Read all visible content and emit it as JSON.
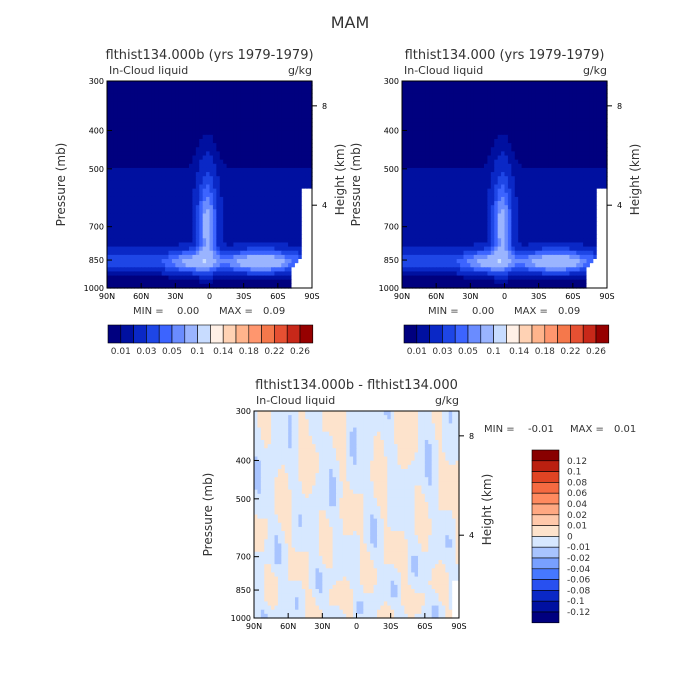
{
  "figure_title": "MAM",
  "colors": {
    "top_scale": [
      "#00007f",
      "#0010a0",
      "#0a28c6",
      "#1e46e6",
      "#3c64ff",
      "#6a8cff",
      "#9ab4ff",
      "#c8dcff",
      "#fff0e6",
      "#ffd2b4",
      "#ffb48c",
      "#ff966e",
      "#f5784b",
      "#e65032",
      "#c82819",
      "#960000"
    ],
    "diff_scale": [
      "#00007f",
      "#0010a0",
      "#0a28c6",
      "#2850f0",
      "#4678ff",
      "#78a0ff",
      "#a8c4ff",
      "#d7e8ff",
      "#fde3cc",
      "#ffc8aa",
      "#ffa882",
      "#ff8a5f",
      "#f56a41",
      "#e04423",
      "#bb2010",
      "#880000"
    ],
    "diff_bg": "#ffffff"
  },
  "chart_data": [
    {
      "type": "heatmap",
      "title": "flthist134.000b (yrs 1979-1979)",
      "subtitle_left": "In-Cloud liquid",
      "subtitle_right": "g/kg",
      "ylabel": "Pressure (mb)",
      "ylabel_right": "Height (km)",
      "x_ticks": [
        "90N",
        "60N",
        "30N",
        "0",
        "30S",
        "60S",
        "90S"
      ],
      "y_ticks": [
        "300",
        "400",
        "500",
        "700",
        "850",
        "1000"
      ],
      "y_ticks_right": [
        "8",
        "4"
      ],
      "stats": {
        "min_label": "MIN =",
        "min": "0.00",
        "max_label": "MAX =",
        "max": "0.09"
      },
      "colorbar_labels": [
        "0.01",
        "0.03",
        "0.05",
        "0.1",
        "0.14",
        "0.18",
        "0.22",
        "0.26"
      ],
      "ylim": [
        1000,
        300
      ]
    },
    {
      "type": "heatmap",
      "title": "flthist134.000 (yrs 1979-1979)",
      "subtitle_left": "In-Cloud liquid",
      "subtitle_right": "g/kg",
      "ylabel": "Pressure (mb)",
      "ylabel_right": "Height (km)",
      "x_ticks": [
        "90N",
        "60N",
        "30N",
        "0",
        "30S",
        "60S",
        "90S"
      ],
      "y_ticks": [
        "300",
        "400",
        "500",
        "700",
        "850",
        "1000"
      ],
      "y_ticks_right": [
        "8",
        "4"
      ],
      "stats": {
        "min_label": "MIN =",
        "min": "0.00",
        "max_label": "MAX =",
        "max": "0.09"
      },
      "colorbar_labels": [
        "0.01",
        "0.03",
        "0.05",
        "0.1",
        "0.14",
        "0.18",
        "0.22",
        "0.26"
      ],
      "ylim": [
        1000,
        300
      ]
    },
    {
      "type": "heatmap",
      "title": "flthist134.000b - flthist134.000",
      "subtitle_left": "In-Cloud liquid",
      "subtitle_right": "g/kg",
      "ylabel": "Pressure (mb)",
      "ylabel_right": "Height (km)",
      "x_ticks": [
        "90N",
        "60N",
        "30N",
        "0",
        "30S",
        "60S",
        "90S"
      ],
      "y_ticks": [
        "300",
        "400",
        "500",
        "700",
        "850",
        "1000"
      ],
      "y_ticks_right": [
        "8",
        "4"
      ],
      "stats": {
        "min_label": "MIN =",
        "min": "-0.01",
        "max_label": "MAX =",
        "max": "0.01"
      },
      "colorbar_labels": [
        "0.12",
        "0.1",
        "0.08",
        "0.06",
        "0.04",
        "0.02",
        "0.01",
        "0",
        "-0.01",
        "-0.02",
        "-0.04",
        "-0.06",
        "-0.08",
        "-0.1",
        "-0.12"
      ],
      "ylim": [
        1000,
        300
      ]
    }
  ]
}
